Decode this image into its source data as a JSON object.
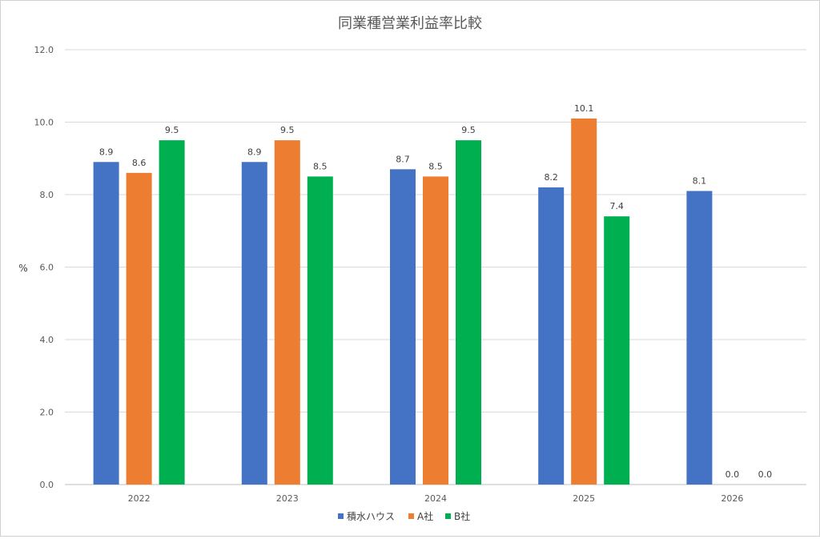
{
  "chart_data": {
    "type": "bar",
    "title": "同業種営業利益率比較",
    "ylabel": "%",
    "xlabel": "",
    "ylim": [
      0,
      12
    ],
    "yticks": [
      "0.0",
      "2.0",
      "4.0",
      "6.0",
      "8.0",
      "10.0",
      "12.0"
    ],
    "categories": [
      "2022",
      "2023",
      "2024",
      "2025",
      "2026"
    ],
    "series": [
      {
        "name": "積水ハウス",
        "color": "#4472C4",
        "values": [
          8.9,
          8.9,
          8.7,
          8.2,
          8.1
        ],
        "labels": [
          "8.9",
          "8.9",
          "8.7",
          "8.2",
          "8.1"
        ]
      },
      {
        "name": "A社",
        "color": "#ED7D31",
        "values": [
          8.6,
          9.5,
          8.5,
          10.1,
          0.0
        ],
        "labels": [
          "8.6",
          "9.5",
          "8.5",
          "10.1",
          "0.0"
        ]
      },
      {
        "name": "B社",
        "color": "#00B050",
        "values": [
          9.5,
          8.5,
          9.5,
          7.4,
          0.0
        ],
        "labels": [
          "9.5",
          "8.5",
          "9.5",
          "7.4",
          "0.0"
        ]
      }
    ],
    "grid": true,
    "legend_position": "bottom"
  }
}
